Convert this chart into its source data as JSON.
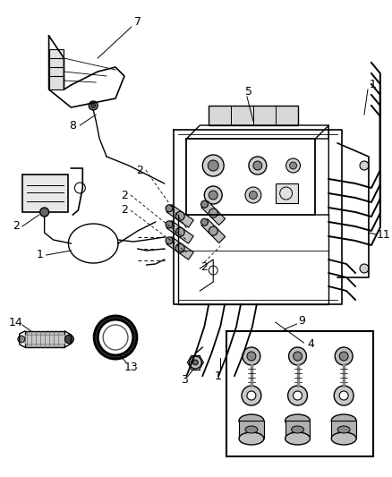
{
  "bg_color": "#ffffff",
  "line_color": "#000000",
  "fig_width": 4.38,
  "fig_height": 5.33,
  "dpi": 100,
  "gray_light": "#c8c8c8",
  "gray_mid": "#888888",
  "gray_dark": "#444444"
}
